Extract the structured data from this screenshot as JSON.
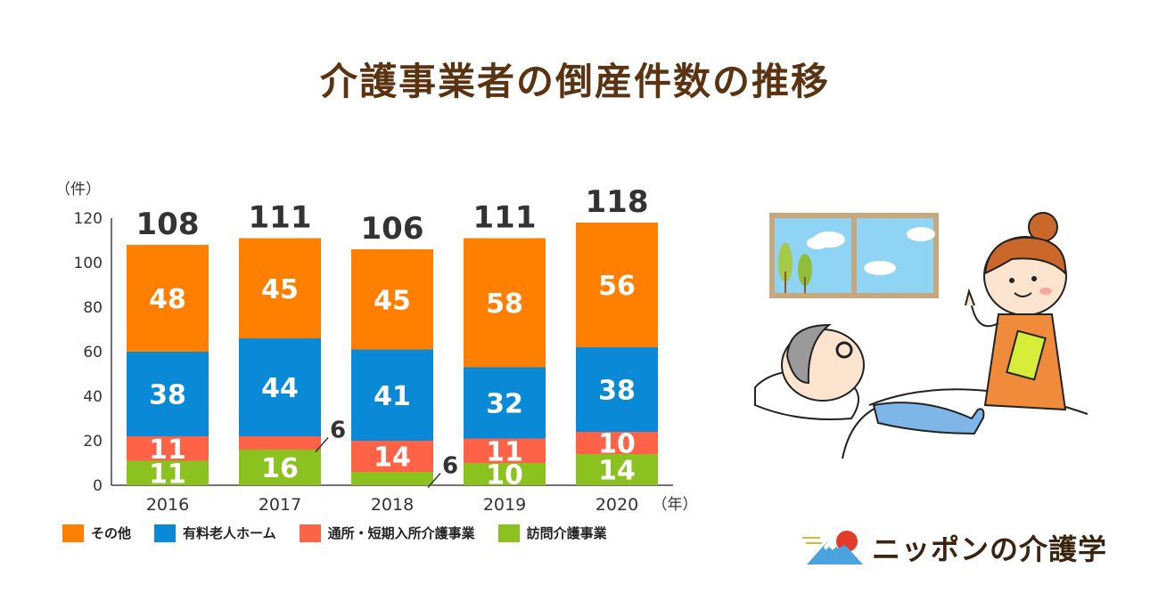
{
  "title": "介護事業者の倒産件数の推移",
  "colors": {
    "title": "#5a3312",
    "other": "#ff7f00",
    "home": "#0a8ad6",
    "day": "#ff6347",
    "visit": "#8cc21f"
  },
  "chart_data": {
    "type": "bar",
    "stacked": true,
    "ylabel": "（件）",
    "xlabel": "（年）",
    "ylim": [
      0,
      120
    ],
    "yticks": [
      0,
      20,
      40,
      60,
      80,
      100,
      120
    ],
    "categories": [
      "2016",
      "2017",
      "2018",
      "2019",
      "2020"
    ],
    "totals": [
      108,
      111,
      106,
      111,
      118
    ],
    "series": [
      {
        "name": "訪問介護事業",
        "color": "#8cc21f",
        "values": [
          11,
          16,
          6,
          10,
          14
        ]
      },
      {
        "name": "通所・短期入所介護事業",
        "color": "#ff6347",
        "values": [
          11,
          6,
          14,
          11,
          10
        ]
      },
      {
        "name": "有料老人ホーム",
        "color": "#0a8ad6",
        "values": [
          38,
          44,
          41,
          32,
          38
        ]
      },
      {
        "name": "その他",
        "color": "#ff7f00",
        "values": [
          48,
          45,
          45,
          58,
          56
        ]
      }
    ],
    "legend_order": [
      "その他",
      "有料老人ホーム",
      "通所・短期入所介護事業",
      "訪問介護事業"
    ],
    "legend_position": "bottom",
    "grid": false
  },
  "logo": {
    "text": "ニッポンの介護学"
  },
  "illustration": {
    "icon": "caregiver-and-bedridden-patient-illustration"
  }
}
